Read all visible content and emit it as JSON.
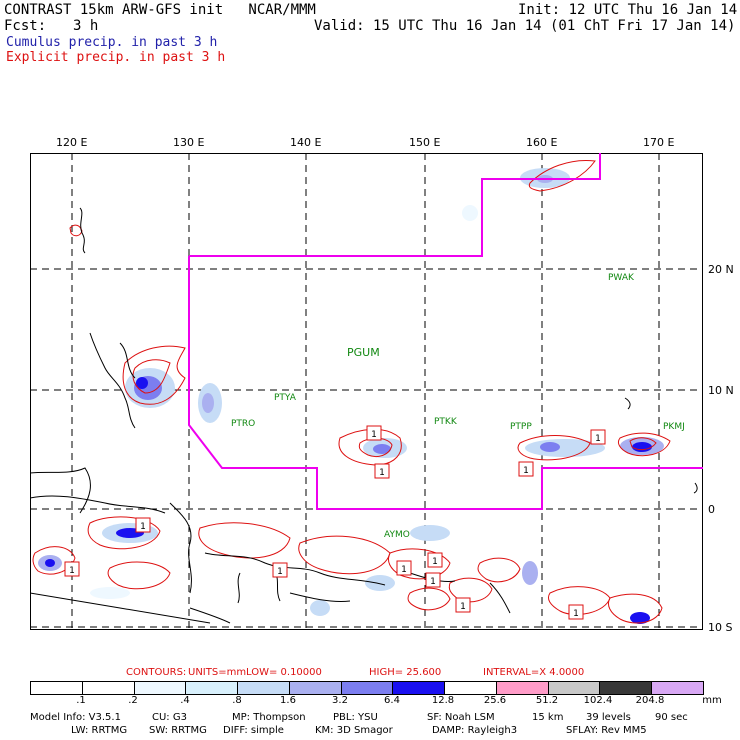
{
  "header": {
    "title": "CONTRAST 15km ARW-GFS init   NCAR/MMM",
    "init": "Init: 12 UTC Thu 16 Jan 14",
    "fcst_label": "Fcst:",
    "fcst_value": "3 h",
    "valid": "Valid: 15 UTC Thu 16 Jan 14 (01 ChT Fri 17 Jan 14)",
    "cumulus": "Cumulus precip. in past 3 h",
    "explicit": "Explicit precip. in past 3 h"
  },
  "map": {
    "lon_labels": [
      "120 E",
      "130 E",
      "140 E",
      "150 E",
      "160 E",
      "170 E"
    ],
    "lat_labels": [
      "20 N",
      "10 N",
      "0",
      "10 S"
    ],
    "stations": [
      "PWAK",
      "PGUM",
      "PTYA",
      "PTRO",
      "PTKK",
      "PTPP",
      "PKMJ",
      "AYMO"
    ],
    "boxes": [
      "1",
      "1",
      "1",
      "1",
      "1",
      "1",
      "1",
      "1",
      "1",
      "1",
      "1",
      "1"
    ]
  },
  "contours": {
    "label": "CONTOURS:",
    "units": "UNITS=mm",
    "low": "LOW= 0.10000",
    "high": "HIGH=  25.600",
    "interval": "INTERVAL=X  4.0000"
  },
  "colorbar": {
    "labels": [
      ".1",
      ".2",
      ".4",
      ".8",
      "1.6",
      "3.2",
      "6.4",
      "12.8",
      "25.6",
      "51.2",
      "102.4",
      "204.8"
    ],
    "unit": "mm",
    "colors": [
      "#ffffff",
      "#ffffff",
      "#eef8ff",
      "#d8f0fc",
      "#c6dcf6",
      "#aab0f0",
      "#7c7ef0",
      "#1a10f0",
      "#ffffff",
      "#ff9cc8",
      "#c8c8c8",
      "#383838",
      "#d8a8f4"
    ]
  },
  "model_info": {
    "line1": [
      "Model Info: V3.5.1",
      "CU: G3",
      "MP: Thompson",
      "PBL: YSU",
      "SF: Noah LSM",
      "15 km",
      "39 levels",
      "90 sec"
    ],
    "line2": [
      "LW: RRTMG",
      "SW: RRTMG",
      "DIFF: simple",
      "KM: 3D Smagor",
      "DAMP: Rayleigh3",
      "SFLAY: Rev MM5"
    ]
  }
}
